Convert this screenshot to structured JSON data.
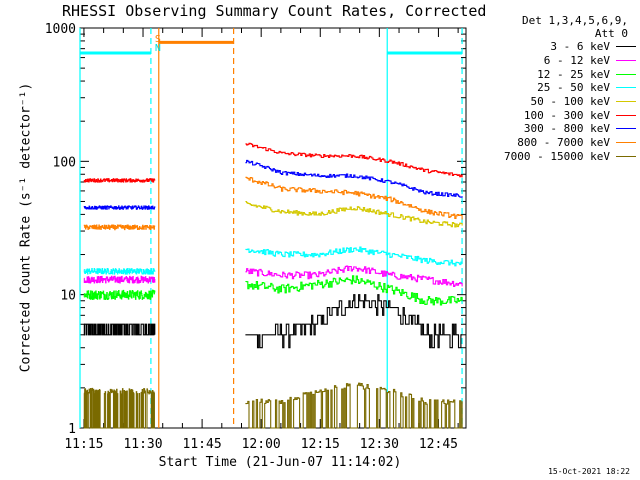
{
  "chart_data": {
    "type": "line",
    "title": "RHESSI Observing Summary Count Rates, Corrected",
    "xlabel": "Start Time (21-Jun-07 11:14:02)",
    "ylabel": "Corrected Count Rate (s⁻¹ detector⁻¹)",
    "yscale": "log",
    "ylim": [
      1,
      1000
    ],
    "xlim": [
      "11:14",
      "12:52"
    ],
    "x_ticks": [
      "11:15",
      "11:30",
      "11:45",
      "12:00",
      "12:15",
      "12:30",
      "12:45"
    ],
    "y_ticks": [
      "1",
      "10",
      "100",
      "1000"
    ],
    "detectors": "Det 1,3,4,5,6,9,",
    "attenuator": "Att 0",
    "timestamp": "15-Oct-2021 18:22",
    "flags": [
      {
        "label": "S",
        "color": "#ff8000",
        "time": "11:32"
      },
      {
        "label": "N",
        "color": "#00e0e0",
        "time": "11:32"
      }
    ],
    "flag_bars": [
      {
        "color": "#00ffff",
        "start": "11:14",
        "end": "11:32",
        "level": 650
      },
      {
        "color": "#ff8000",
        "start": "11:34",
        "end": "11:53",
        "level": 780
      },
      {
        "color": "#00ffff",
        "start": "12:32",
        "end": "12:51",
        "level": 650
      }
    ],
    "markers": [
      {
        "time": "11:14",
        "color": "#00ffff",
        "style": "solid"
      },
      {
        "time": "11:32",
        "color": "#00ffff",
        "style": "dashed"
      },
      {
        "time": "11:34",
        "color": "#ff8000",
        "style": "solid"
      },
      {
        "time": "11:53",
        "color": "#ff8000",
        "style": "dashed"
      },
      {
        "time": "12:32",
        "color": "#00ffff",
        "style": "solid"
      },
      {
        "time": "12:51",
        "color": "#00ffff",
        "style": "dashed"
      }
    ],
    "segments": [
      {
        "start": "11:15",
        "end": "11:33"
      },
      {
        "start": "11:56",
        "end": "12:51"
      }
    ],
    "series": [
      {
        "name": "3 - 6 keV",
        "color": "#000000",
        "values": [
          [
            5.5,
            5.5
          ],
          [
            5,
            5,
            6,
            9,
            8,
            5,
            5
          ]
        ],
        "noise": 0.15
      },
      {
        "name": "6 - 12 keV",
        "color": "#ff00ff",
        "values": [
          [
            13,
            13
          ],
          [
            15,
            14,
            14,
            16,
            14,
            13,
            12
          ]
        ],
        "noise": 0.06
      },
      {
        "name": "12 - 25 keV",
        "color": "#00ff00",
        "values": [
          [
            10,
            10
          ],
          [
            12,
            11,
            12,
            13,
            11,
            9,
            9
          ]
        ],
        "noise": 0.08
      },
      {
        "name": "25 - 50 keV",
        "color": "#00ffff",
        "values": [
          [
            15,
            15
          ],
          [
            22,
            20,
            20,
            22,
            20,
            18,
            17
          ]
        ],
        "noise": 0.05
      },
      {
        "name": "50 - 100 keV",
        "color": "#d4c800",
        "values": [
          [
            0,
            0
          ],
          [
            48,
            42,
            40,
            45,
            40,
            35,
            33
          ]
        ],
        "noise": 0.04
      },
      {
        "name": "100 - 300 keV",
        "color": "#ff0000",
        "values": [
          [
            72,
            72
          ],
          [
            135,
            115,
            110,
            110,
            100,
            85,
            78
          ]
        ],
        "noise": 0.03
      },
      {
        "name": "300 - 800 keV",
        "color": "#0000ff",
        "values": [
          [
            45,
            45
          ],
          [
            100,
            82,
            78,
            78,
            70,
            58,
            55
          ]
        ],
        "noise": 0.03
      },
      {
        "name": "800 - 7000 keV",
        "color": "#ff8000",
        "values": [
          [
            32,
            32
          ],
          [
            75,
            62,
            60,
            58,
            52,
            42,
            38
          ]
        ],
        "noise": 0.04
      },
      {
        "name": "7000 - 15000 keV",
        "color": "#7a6a00",
        "values": [
          [
            1.8,
            1.8
          ],
          [
            1.5,
            1.5,
            1.8,
            2.0,
            1.8,
            1.5,
            1.5
          ]
        ],
        "noise": 0.5
      }
    ]
  }
}
